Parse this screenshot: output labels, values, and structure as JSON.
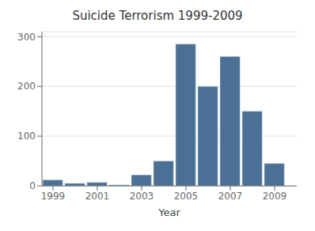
{
  "chart_data": {
    "type": "bar",
    "title": "Suicide Terrorism 1999-2009",
    "xlabel": "Year",
    "x": [
      1999,
      2000,
      2001,
      2002,
      2003,
      2004,
      2005,
      2006,
      2007,
      2008,
      2009
    ],
    "values": [
      12,
      5,
      7,
      2,
      22,
      50,
      285,
      200,
      260,
      150,
      45
    ],
    "color": "#4a7096",
    "xlim": [
      1998.5,
      2010.0
    ],
    "xticks": [
      1999,
      2001,
      2003,
      2005,
      2007,
      2009
    ],
    "ylim": [
      0,
      310
    ],
    "yticks": [
      0,
      100,
      200,
      300
    ],
    "grid": true
  }
}
